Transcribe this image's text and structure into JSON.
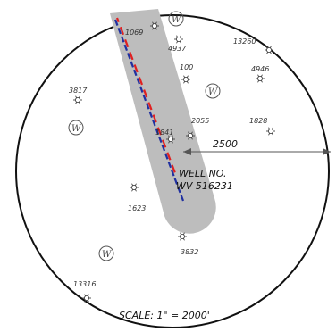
{
  "well": {
    "label_line1": "WELL NO.",
    "label_line2": "WV 516231"
  },
  "radius_label": "2500'",
  "scale_label": "SCALE:  1\" = 2000'",
  "w_symbol": "W",
  "wells": [
    {
      "id": "1069",
      "label": "1069"
    },
    {
      "id": "4937",
      "label": "4937"
    },
    {
      "id": "13260",
      "label": "13260"
    },
    {
      "id": "4946",
      "label": "4946"
    },
    {
      "id": "100",
      "label": "100"
    },
    {
      "id": "3817",
      "label": "3817"
    },
    {
      "id": "2055",
      "label": "2055"
    },
    {
      "id": "1828",
      "label": "1828"
    },
    {
      "id": "1841",
      "label": "1841"
    },
    {
      "id": "1623",
      "label": "1623"
    },
    {
      "id": "3832",
      "label": "3832"
    },
    {
      "id": "13316",
      "label": "13316"
    }
  ],
  "colors": {
    "buffer": "#bdbdbd",
    "path_blue": "#2030a0",
    "path_red": "#e02020",
    "circle": "#111111",
    "ink": "#333333"
  }
}
